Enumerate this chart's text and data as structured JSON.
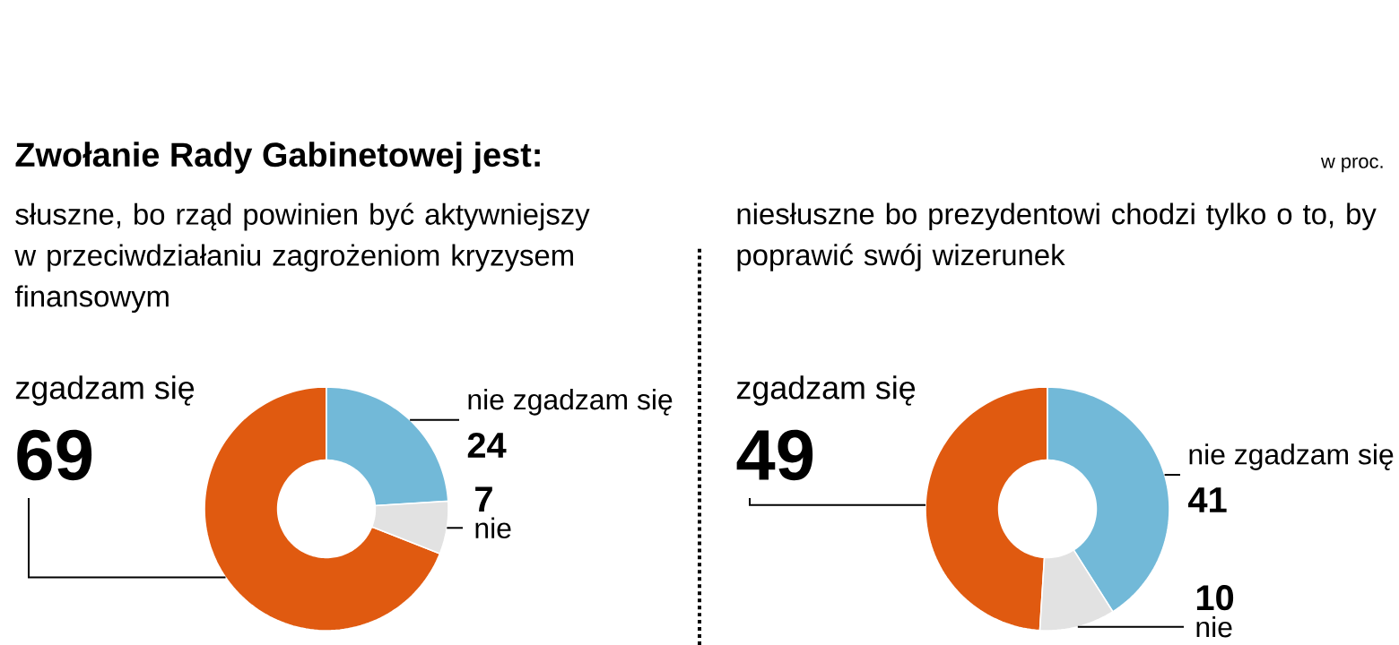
{
  "chart_data": [
    {
      "type": "donut",
      "title": "Zwołanie Rady Gabinetowej jest:",
      "subtitle": "słuszne, bo rząd powinien być aktywniejszy w przeciwdziałaniu zagrożeniom kryzysem finansowym",
      "categories": [
        "zgadzam się",
        "nie zgadzam się",
        "nie"
      ],
      "values": [
        69,
        24,
        7
      ],
      "colors": [
        "#e05a10",
        "#72b9d8",
        "#e2e2e2"
      ],
      "data_labels": true
    },
    {
      "type": "donut",
      "subtitle": "niesłuszne bo prezydentowi chodzi tylko o to, by poprawić swój wizerunek",
      "annotations": [
        "w proc."
      ],
      "categories": [
        "zgadzam się",
        "nie zgadzam się",
        "nie"
      ],
      "values": [
        49,
        41,
        10
      ],
      "colors": [
        "#e05a10",
        "#72b9d8",
        "#e2e2e2"
      ],
      "data_labels": true
    }
  ]
}
